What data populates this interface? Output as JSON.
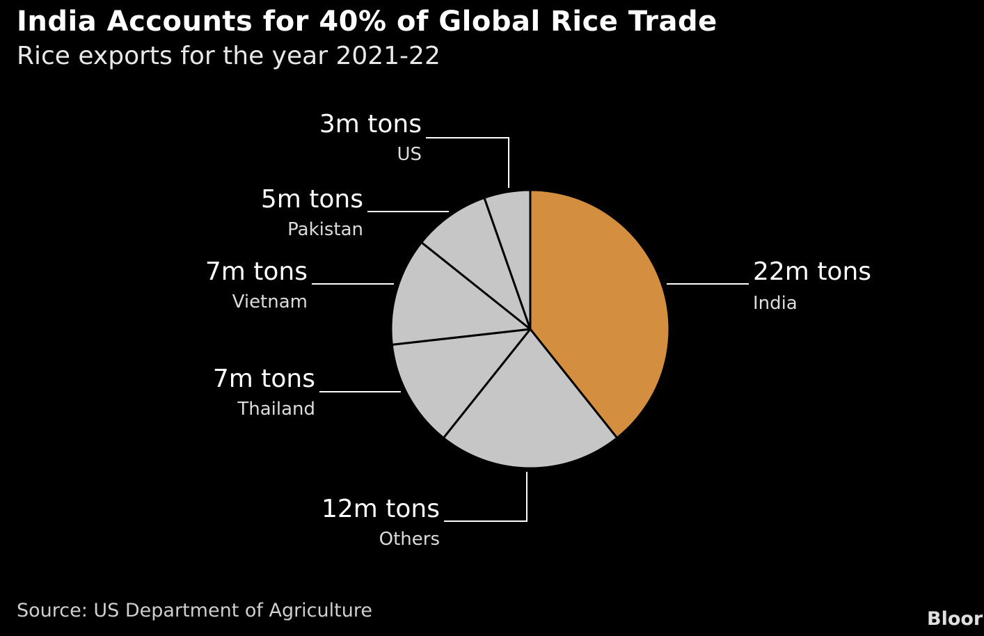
{
  "title": "India Accounts for 40% of Global Rice Trade",
  "subtitle": "Rice exports for the year 2021-22",
  "source": "Source: US Department of Agriculture",
  "brand": "Bloor",
  "colors": {
    "highlight": "#d38f3f",
    "slice": "#c6c6c6",
    "background": "#000000",
    "leader": "#ffffff"
  },
  "chart_data": {
    "type": "pie",
    "unit": "m tons",
    "slices": [
      {
        "category": "India",
        "value": 22,
        "label": "22m tons",
        "highlight": true
      },
      {
        "category": "Others",
        "value": 12,
        "label": "12m tons",
        "highlight": false
      },
      {
        "category": "Thailand",
        "value": 7,
        "label": "7m tons",
        "highlight": false
      },
      {
        "category": "Vietnam",
        "value": 7,
        "label": "7m tons",
        "highlight": false
      },
      {
        "category": "Pakistan",
        "value": 5,
        "label": "5m tons",
        "highlight": false
      },
      {
        "category": "US",
        "value": 3,
        "label": "3m tons",
        "highlight": false
      }
    ]
  }
}
